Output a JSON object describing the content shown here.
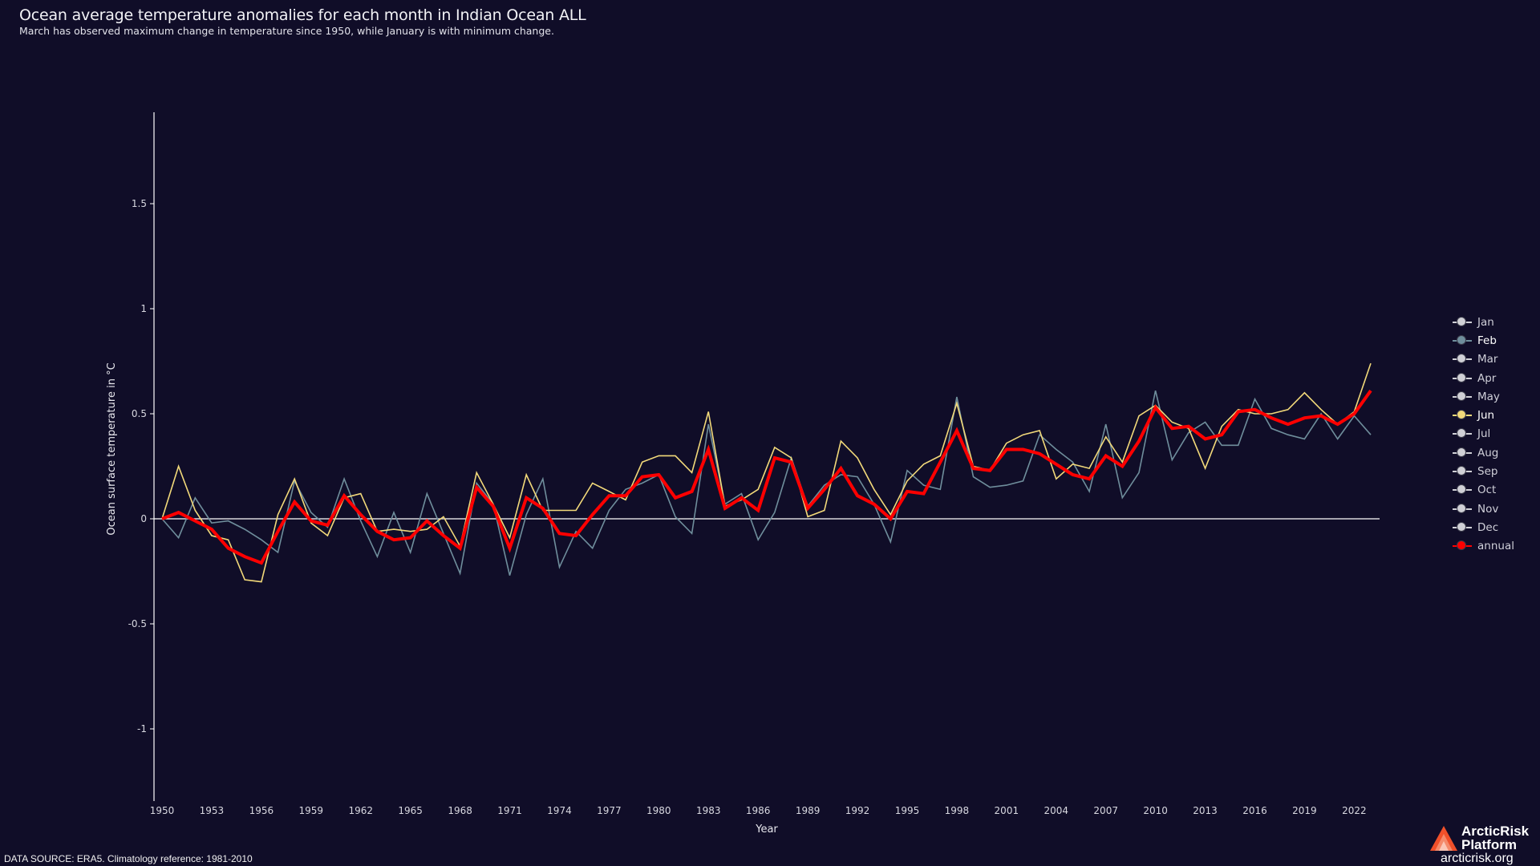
{
  "header": {
    "title": "Ocean average temperature anomalies for each month in Indian Ocean ALL",
    "subtitle": "March has observed maximum change in temperature since 1950, while January is with minimum change."
  },
  "footer": {
    "source": "DATA SOURCE: ERA5. Climatology reference: 1981-2010",
    "logo_line1": "ArcticRisk",
    "logo_line2": "Platform",
    "logo_url": "arcticrisk.org"
  },
  "colors": {
    "background": "#100d28",
    "feb": "#6f8e9c",
    "jun": "#f2d97a",
    "annual": "#ff0000",
    "inactive_marker": "#d0d0d6",
    "axis": "#ffffff"
  },
  "legend": {
    "items": [
      {
        "label": "Jan",
        "state": "hidden"
      },
      {
        "label": "Feb",
        "state": "visible",
        "color": "#6f8e9c"
      },
      {
        "label": "Mar",
        "state": "hidden"
      },
      {
        "label": "Apr",
        "state": "hidden"
      },
      {
        "label": "May",
        "state": "hidden"
      },
      {
        "label": "Jun",
        "state": "visible",
        "color": "#f2d97a"
      },
      {
        "label": "Jul",
        "state": "hidden"
      },
      {
        "label": "Aug",
        "state": "hidden"
      },
      {
        "label": "Sep",
        "state": "hidden"
      },
      {
        "label": "Oct",
        "state": "hidden"
      },
      {
        "label": "Nov",
        "state": "hidden"
      },
      {
        "label": "Dec",
        "state": "hidden"
      },
      {
        "label": "annual",
        "state": "visible",
        "color": "#ff0000"
      }
    ]
  },
  "chart_data": {
    "type": "line",
    "title": "Ocean average temperature anomalies for each month in Indian Ocean ALL",
    "subtitle": "March has observed maximum change in temperature since 1950, while January is with minimum change.",
    "xlabel": "Year",
    "ylabel": "Ocean surface temperature in °C",
    "xlim": [
      1950,
      2023
    ],
    "ylim": [
      -1.35,
      1.93
    ],
    "x_ticks": [
      1950,
      1953,
      1956,
      1959,
      1962,
      1965,
      1968,
      1971,
      1974,
      1977,
      1980,
      1983,
      1986,
      1989,
      1992,
      1995,
      1998,
      2001,
      2004,
      2007,
      2010,
      2013,
      2016,
      2019,
      2022
    ],
    "y_ticks": [
      -1,
      -0.5,
      0,
      0.5,
      1,
      1.5
    ],
    "y_tick_labels": [
      "-1",
      "-0.5",
      "0",
      "0.5",
      "1",
      "1.5"
    ],
    "grid": false,
    "zero_line": true,
    "legend_position": "right",
    "x": [
      1950,
      1951,
      1952,
      1953,
      1954,
      1955,
      1956,
      1957,
      1958,
      1959,
      1960,
      1961,
      1962,
      1963,
      1964,
      1965,
      1966,
      1967,
      1968,
      1969,
      1970,
      1971,
      1972,
      1973,
      1974,
      1975,
      1976,
      1977,
      1978,
      1979,
      1980,
      1981,
      1982,
      1983,
      1984,
      1985,
      1986,
      1987,
      1988,
      1989,
      1990,
      1991,
      1992,
      1993,
      1994,
      1995,
      1996,
      1997,
      1998,
      1999,
      2000,
      2001,
      2002,
      2003,
      2004,
      2005,
      2006,
      2007,
      2008,
      2009,
      2010,
      2011,
      2012,
      2013,
      2014,
      2015,
      2016,
      2017,
      2018,
      2019,
      2020,
      2021,
      2022,
      2023
    ],
    "series": [
      {
        "name": "Feb",
        "color": "#6f8e9c",
        "width": 1.6,
        "values": [
          0.0,
          -0.09,
          0.1,
          -0.02,
          -0.01,
          -0.05,
          -0.1,
          -0.16,
          0.18,
          0.03,
          -0.04,
          0.19,
          -0.01,
          -0.18,
          0.03,
          -0.16,
          0.12,
          -0.07,
          -0.26,
          0.17,
          0.07,
          -0.27,
          0.02,
          0.19,
          -0.23,
          -0.06,
          -0.14,
          0.04,
          0.14,
          0.17,
          0.21,
          0.01,
          -0.07,
          0.45,
          0.07,
          0.12,
          -0.1,
          0.03,
          0.29,
          0.06,
          0.16,
          0.21,
          0.2,
          0.07,
          -0.11,
          0.23,
          0.16,
          0.14,
          0.58,
          0.2,
          0.15,
          0.16,
          0.18,
          0.4,
          0.33,
          0.27,
          0.13,
          0.45,
          0.1,
          0.22,
          0.61,
          0.28,
          0.41,
          0.46,
          0.35,
          0.35,
          0.57,
          0.43,
          0.4,
          0.38,
          0.5,
          0.38,
          0.49,
          0.4
        ]
      },
      {
        "name": "Jun",
        "color": "#f2d97a",
        "width": 1.6,
        "values": [
          0.0,
          0.25,
          0.04,
          -0.08,
          -0.1,
          -0.29,
          -0.3,
          0.02,
          0.19,
          -0.02,
          -0.08,
          0.1,
          0.12,
          -0.06,
          -0.05,
          -0.06,
          -0.05,
          0.01,
          -0.13,
          0.22,
          0.07,
          -0.09,
          0.21,
          0.04,
          0.04,
          0.04,
          0.17,
          0.13,
          0.09,
          0.27,
          0.3,
          0.3,
          0.22,
          0.51,
          0.06,
          0.09,
          0.14,
          0.34,
          0.29,
          0.01,
          0.04,
          0.37,
          0.29,
          0.14,
          0.02,
          0.18,
          0.26,
          0.3,
          0.55,
          0.25,
          0.23,
          0.36,
          0.4,
          0.42,
          0.19,
          0.26,
          0.24,
          0.39,
          0.27,
          0.49,
          0.54,
          0.46,
          0.43,
          0.24,
          0.44,
          0.52,
          0.5,
          0.5,
          0.52,
          0.6,
          0.52,
          0.45,
          0.51,
          0.74
        ]
      },
      {
        "name": "annual",
        "color": "#ff0000",
        "width": 4,
        "values": [
          0.0,
          0.03,
          -0.01,
          -0.05,
          -0.14,
          -0.18,
          -0.21,
          -0.06,
          0.08,
          -0.01,
          -0.03,
          0.11,
          0.02,
          -0.06,
          -0.1,
          -0.09,
          -0.01,
          -0.08,
          -0.14,
          0.15,
          0.06,
          -0.14,
          0.1,
          0.05,
          -0.07,
          -0.08,
          0.02,
          0.11,
          0.11,
          0.2,
          0.21,
          0.1,
          0.13,
          0.33,
          0.05,
          0.1,
          0.04,
          0.29,
          0.27,
          0.05,
          0.14,
          0.24,
          0.11,
          0.07,
          0.0,
          0.13,
          0.12,
          0.27,
          0.42,
          0.24,
          0.23,
          0.33,
          0.33,
          0.31,
          0.26,
          0.21,
          0.19,
          0.3,
          0.25,
          0.37,
          0.53,
          0.43,
          0.44,
          0.38,
          0.4,
          0.51,
          0.52,
          0.48,
          0.45,
          0.48,
          0.49,
          0.45,
          0.5,
          0.61
        ]
      }
    ]
  }
}
